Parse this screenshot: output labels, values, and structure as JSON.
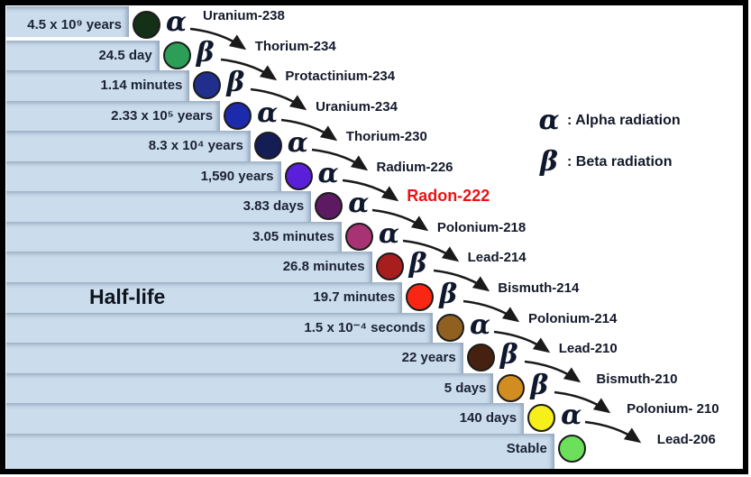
{
  "diagram": {
    "title": "Half-life",
    "legend": [
      {
        "name": "alpha",
        "symbol": "α",
        "label": ": Alpha radiation"
      },
      {
        "name": "beta",
        "symbol": "β",
        "label": ": Beta radiation"
      }
    ],
    "chain": [
      {
        "half_life": "4.5 x 10⁹ years",
        "radiation": "alpha",
        "symbol": "α",
        "isotope": "Uranium-238",
        "circle_color": "#143016",
        "highlight": false
      },
      {
        "half_life": "24.5 day",
        "radiation": "beta",
        "symbol": "β",
        "isotope": "Thorium-234",
        "circle_color": "#2d9e57",
        "highlight": false
      },
      {
        "half_life": "1.14 minutes",
        "radiation": "beta",
        "symbol": "β",
        "isotope": "Protactinium-234",
        "circle_color": "#202f8e",
        "highlight": false
      },
      {
        "half_life": "2.33 x 10⁵ years",
        "radiation": "alpha",
        "symbol": "α",
        "isotope": "Uranium-234",
        "circle_color": "#1c2bab",
        "highlight": false
      },
      {
        "half_life": "8.3 x 10⁴ years",
        "radiation": "alpha",
        "symbol": "α",
        "isotope": "Thorium-230",
        "circle_color": "#151d56",
        "highlight": false
      },
      {
        "half_life": "1,590 years",
        "radiation": "alpha",
        "symbol": "α",
        "isotope": "Radium-226",
        "circle_color": "#5a1fd8",
        "highlight": false
      },
      {
        "half_life": "3.83 days",
        "radiation": "alpha",
        "symbol": "α",
        "isotope": "Radon-222",
        "circle_color": "#5d1a63",
        "highlight": true
      },
      {
        "half_life": "3.05 minutes",
        "radiation": "alpha",
        "symbol": "α",
        "isotope": "Polonium-218",
        "circle_color": "#a83374",
        "highlight": false
      },
      {
        "half_life": "26.8 minutes",
        "radiation": "beta",
        "symbol": "β",
        "isotope": "Lead-214",
        "circle_color": "#a81d1d",
        "highlight": false
      },
      {
        "half_life": "19.7 minutes",
        "radiation": "beta",
        "symbol": "β",
        "isotope": "Bismuth-214",
        "circle_color": "#f92613",
        "highlight": false
      },
      {
        "half_life": "1.5 x 10⁻⁴ seconds",
        "radiation": "alpha",
        "symbol": "α",
        "isotope": "Polonium-214",
        "circle_color": "#8f6020",
        "highlight": false
      },
      {
        "half_life": "22 years",
        "radiation": "beta",
        "symbol": "β",
        "isotope": "Lead-210",
        "circle_color": "#472110",
        "highlight": false
      },
      {
        "half_life": "5 days",
        "radiation": "beta",
        "symbol": "β",
        "isotope": "Bismuth-210",
        "circle_color": "#d18d1f",
        "highlight": false
      },
      {
        "half_life": "140 days",
        "radiation": "alpha",
        "symbol": "α",
        "isotope": "Polonium- 210",
        "circle_color": "#f7ef19",
        "highlight": false
      },
      {
        "half_life": "Stable",
        "radiation": "",
        "symbol": "",
        "isotope": "Lead-206",
        "circle_color": "#6ce05a",
        "highlight": false
      }
    ],
    "colors": {
      "background": "#ffffff",
      "staircase": "#cbdcec",
      "text": "#14192b",
      "highlight_text": "#ec1212",
      "arrow": "#1a1a1a",
      "circle_ring": "#1c1c1c",
      "frame": "#000000"
    }
  }
}
